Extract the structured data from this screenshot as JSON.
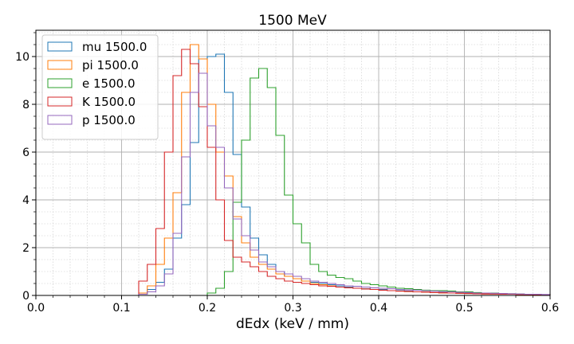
{
  "chart_data": {
    "type": "histogram",
    "title": "1500 MeV",
    "xlabel": "dEdx (keV / mm)",
    "ylabel": "",
    "xlim": [
      0.0,
      0.6
    ],
    "ylim": [
      0,
      11.1
    ],
    "xticks": [
      "0.0",
      "0.1",
      "0.2",
      "0.3",
      "0.4",
      "0.5",
      "0.6"
    ],
    "yticks": [
      "0",
      "2",
      "4",
      "6",
      "8",
      "10"
    ],
    "grid": "major and minor, dotted",
    "legend_position": "top-left",
    "bin_edges": [
      0.12,
      0.13,
      0.14,
      0.15,
      0.16,
      0.17,
      0.18,
      0.19,
      0.2,
      0.21,
      0.22,
      0.23,
      0.24,
      0.25,
      0.26,
      0.27,
      0.28,
      0.29,
      0.3,
      0.31,
      0.32,
      0.33,
      0.34,
      0.35,
      0.36,
      0.37,
      0.38,
      0.39,
      0.4,
      0.41,
      0.42,
      0.43,
      0.44,
      0.45,
      0.46,
      0.47,
      0.48,
      0.49,
      0.5,
      0.51,
      0.52,
      0.53,
      0.54,
      0.55,
      0.56,
      0.57,
      0.58,
      0.59,
      0.6
    ],
    "series": [
      {
        "name": "mu 1500.0",
        "color": "#1f77b4",
        "values": [
          0.05,
          0.25,
          0.55,
          1.1,
          2.4,
          3.8,
          6.4,
          9.9,
          10.0,
          10.1,
          8.5,
          5.9,
          3.7,
          2.4,
          1.7,
          1.3,
          1.0,
          0.8,
          0.7,
          0.6,
          0.55,
          0.5,
          0.45,
          0.4,
          0.35,
          0.3,
          0.28,
          0.25,
          0.25,
          0.2,
          0.2,
          0.18,
          0.15,
          0.15,
          0.12,
          0.12,
          0.1,
          0.1,
          0.08,
          0.08,
          0.07,
          0.06,
          0.06,
          0.05,
          0.05,
          0.04,
          0.04,
          0.03
        ]
      },
      {
        "name": "pi 1500.0",
        "color": "#ff7f0e",
        "values": [
          0.1,
          0.4,
          1.3,
          2.4,
          4.3,
          8.5,
          10.5,
          9.9,
          8.0,
          6.0,
          5.0,
          3.3,
          2.2,
          1.6,
          1.3,
          1.1,
          0.9,
          0.8,
          0.7,
          0.6,
          0.5,
          0.45,
          0.4,
          0.35,
          0.32,
          0.3,
          0.27,
          0.25,
          0.22,
          0.2,
          0.18,
          0.16,
          0.15,
          0.14,
          0.12,
          0.1,
          0.1,
          0.09,
          0.08,
          0.07,
          0.06,
          0.06,
          0.05,
          0.05,
          0.04,
          0.04,
          0.03,
          0.03
        ]
      },
      {
        "name": "e 1500.0",
        "color": "#2ca02c",
        "values": [
          0.0,
          0.0,
          0.0,
          0.0,
          0.0,
          0.0,
          0.0,
          0.0,
          0.1,
          0.3,
          1.0,
          3.9,
          6.5,
          9.1,
          9.5,
          8.7,
          6.7,
          4.2,
          3.0,
          2.2,
          1.3,
          1.0,
          0.85,
          0.75,
          0.7,
          0.6,
          0.5,
          0.45,
          0.4,
          0.35,
          0.3,
          0.28,
          0.25,
          0.22,
          0.2,
          0.2,
          0.18,
          0.15,
          0.15,
          0.12,
          0.1,
          0.1,
          0.08,
          0.07,
          0.06,
          0.05,
          0.04,
          0.03
        ]
      },
      {
        "name": "K 1500.0",
        "color": "#d62728",
        "values": [
          0.6,
          1.3,
          2.8,
          6.0,
          9.2,
          10.3,
          9.7,
          7.9,
          6.2,
          4.0,
          2.3,
          1.6,
          1.4,
          1.2,
          1.0,
          0.8,
          0.7,
          0.6,
          0.55,
          0.5,
          0.45,
          0.4,
          0.38,
          0.35,
          0.32,
          0.3,
          0.27,
          0.25,
          0.22,
          0.2,
          0.18,
          0.17,
          0.15,
          0.14,
          0.12,
          0.11,
          0.1,
          0.09,
          0.08,
          0.07,
          0.06,
          0.06,
          0.05,
          0.05,
          0.04,
          0.04,
          0.03,
          0.03
        ]
      },
      {
        "name": "p 1500.0",
        "color": "#9467bd",
        "values": [
          0.05,
          0.15,
          0.4,
          0.9,
          2.6,
          5.8,
          8.5,
          9.3,
          7.1,
          6.2,
          4.5,
          3.2,
          2.5,
          1.9,
          1.4,
          1.2,
          1.0,
          0.9,
          0.8,
          0.7,
          0.6,
          0.55,
          0.5,
          0.45,
          0.4,
          0.38,
          0.35,
          0.32,
          0.3,
          0.28,
          0.25,
          0.23,
          0.22,
          0.2,
          0.18,
          0.16,
          0.15,
          0.13,
          0.12,
          0.1,
          0.1,
          0.09,
          0.08,
          0.07,
          0.06,
          0.05,
          0.05,
          0.04
        ]
      }
    ]
  }
}
